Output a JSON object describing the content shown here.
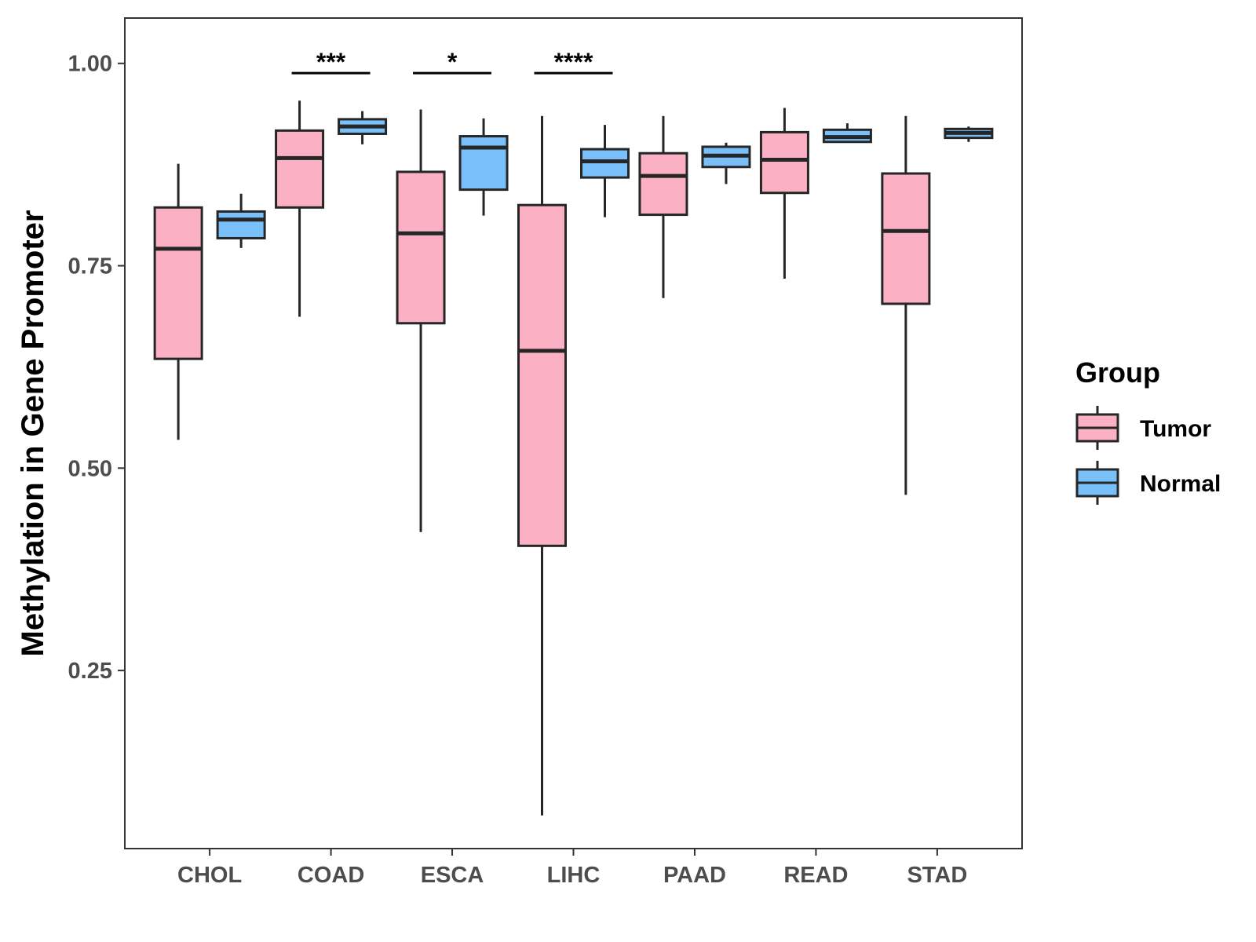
{
  "chart_data": {
    "type": "boxplot",
    "title": "",
    "xlabel": "",
    "ylabel": "Methylation in Gene Promoter",
    "ylim": [
      0.03,
      1.056
    ],
    "yticks": [
      0.25,
      0.5,
      0.75,
      1.0
    ],
    "ytick_labels": [
      "0.25",
      "0.50",
      "0.75",
      "1.00"
    ],
    "categories": [
      "CHOL",
      "COAD",
      "ESCA",
      "LIHC",
      "PAAD",
      "READ",
      "STAD"
    ],
    "legend": {
      "title": "Group",
      "position": "right",
      "entries": [
        {
          "name": "Tumor",
          "color": "#fbb0c3"
        },
        {
          "name": "Normal",
          "color": "#79c0fa"
        }
      ]
    },
    "series": [
      {
        "name": "Tumor",
        "color": "#fbb0c3",
        "boxes": [
          {
            "category": "CHOL",
            "whisker_low": 0.535,
            "q1": 0.635,
            "median": 0.771,
            "q3": 0.822,
            "whisker_high": 0.876
          },
          {
            "category": "COAD",
            "whisker_low": 0.687,
            "q1": 0.822,
            "median": 0.883,
            "q3": 0.917,
            "whisker_high": 0.954
          },
          {
            "category": "ESCA",
            "whisker_low": 0.421,
            "q1": 0.679,
            "median": 0.79,
            "q3": 0.866,
            "whisker_high": 0.943
          },
          {
            "category": "LIHC",
            "whisker_low": 0.071,
            "q1": 0.404,
            "median": 0.645,
            "q3": 0.825,
            "whisker_high": 0.935
          },
          {
            "category": "PAAD",
            "whisker_low": 0.71,
            "q1": 0.813,
            "median": 0.861,
            "q3": 0.889,
            "whisker_high": 0.935
          },
          {
            "category": "READ",
            "whisker_low": 0.734,
            "q1": 0.84,
            "median": 0.881,
            "q3": 0.915,
            "whisker_high": 0.945
          },
          {
            "category": "STAD",
            "whisker_low": 0.467,
            "q1": 0.703,
            "median": 0.793,
            "q3": 0.864,
            "whisker_high": 0.935
          }
        ]
      },
      {
        "name": "Normal",
        "color": "#79c0fa",
        "boxes": [
          {
            "category": "CHOL",
            "whisker_low": 0.772,
            "q1": 0.784,
            "median": 0.807,
            "q3": 0.817,
            "whisker_high": 0.839
          },
          {
            "category": "COAD",
            "whisker_low": 0.9,
            "q1": 0.913,
            "median": 0.922,
            "q3": 0.931,
            "whisker_high": 0.941
          },
          {
            "category": "ESCA",
            "whisker_low": 0.812,
            "q1": 0.844,
            "median": 0.896,
            "q3": 0.91,
            "whisker_high": 0.932
          },
          {
            "category": "LIHC",
            "whisker_low": 0.81,
            "q1": 0.859,
            "median": 0.879,
            "q3": 0.894,
            "whisker_high": 0.924
          },
          {
            "category": "PAAD",
            "whisker_low": 0.851,
            "q1": 0.872,
            "median": 0.886,
            "q3": 0.897,
            "whisker_high": 0.902
          },
          {
            "category": "READ",
            "whisker_low": 0.902,
            "q1": 0.903,
            "median": 0.909,
            "q3": 0.918,
            "whisker_high": 0.926
          },
          {
            "category": "STAD",
            "whisker_low": 0.903,
            "q1": 0.908,
            "median": 0.914,
            "q3": 0.919,
            "whisker_high": 0.922
          }
        ]
      }
    ],
    "significance": [
      {
        "category": "COAD",
        "label": "***",
        "y": 0.988
      },
      {
        "category": "ESCA",
        "label": "*",
        "y": 0.988
      },
      {
        "category": "LIHC",
        "label": "****",
        "y": 0.988
      }
    ],
    "grid": false
  }
}
